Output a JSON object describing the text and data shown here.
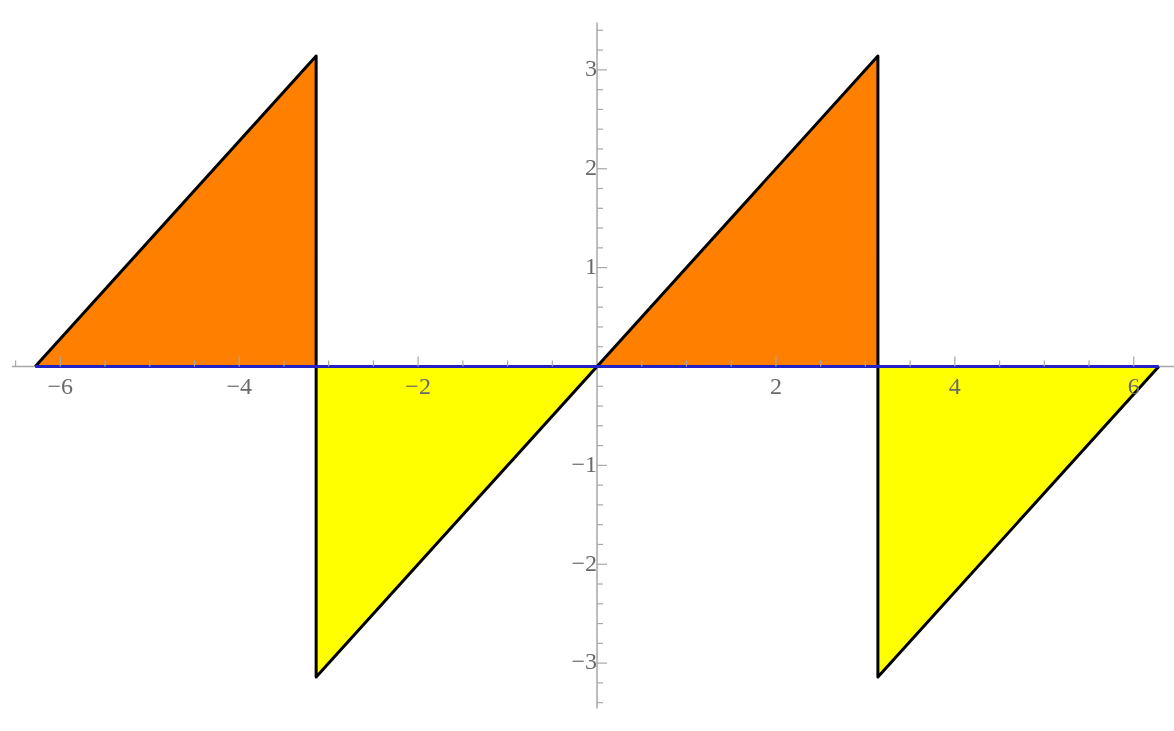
{
  "chart_data": {
    "type": "area",
    "series": [
      {
        "type": "area",
        "color": "#ff7f00",
        "x": [
          -6.28,
          -3.14,
          -3.14,
          0,
          3.14,
          3.14
        ],
        "values": [
          0,
          3.14,
          0,
          0,
          3.14,
          0
        ]
      },
      {
        "type": "area",
        "color": "#ffff00",
        "x": [
          -3.14,
          -3.14,
          0,
          3.14,
          3.14,
          6.28
        ],
        "values": [
          0,
          -3.14,
          0,
          0,
          -3.14,
          0
        ]
      },
      {
        "type": "line",
        "color": "#000000",
        "x": [
          -6.28,
          -3.14,
          -3.14,
          3.14,
          3.14,
          6.28
        ],
        "values": [
          0,
          3.14,
          -3.14,
          3.14,
          -3.14,
          0
        ]
      },
      {
        "type": "line",
        "color": "#2323c4",
        "x": [
          -6.28,
          6.28
        ],
        "values": [
          0,
          0
        ]
      }
    ],
    "xlim": [
      -6.54,
      6.45
    ],
    "ylim": [
      -3.46,
      3.48
    ],
    "xticks": [
      {
        "value": -6.5,
        "label": null
      },
      {
        "value": -6,
        "label": "−6"
      },
      {
        "value": -5.5,
        "label": null
      },
      {
        "value": -5,
        "label": null
      },
      {
        "value": -4.5,
        "label": null
      },
      {
        "value": -4,
        "label": "−4"
      },
      {
        "value": -3.5,
        "label": null
      },
      {
        "value": -3,
        "label": null
      },
      {
        "value": -2.5,
        "label": null
      },
      {
        "value": -2,
        "label": "−2"
      },
      {
        "value": -1.5,
        "label": null
      },
      {
        "value": -1,
        "label": null
      },
      {
        "value": -0.5,
        "label": null
      },
      {
        "value": 0.5,
        "label": null
      },
      {
        "value": 1,
        "label": null
      },
      {
        "value": 1.5,
        "label": null
      },
      2,
      {
        "value": 2.5,
        "label": null
      },
      {
        "value": 3,
        "label": null
      },
      {
        "value": 3.5,
        "label": null
      },
      4,
      {
        "value": 4.5,
        "label": null
      },
      {
        "value": 5,
        "label": null
      },
      {
        "value": 5.5,
        "label": null
      },
      6
    ],
    "yticks": [
      {
        "value": -3.4,
        "label": null
      },
      {
        "value": -3.2,
        "label": null
      },
      {
        "value": -3,
        "label": "−3"
      },
      {
        "value": -2.8,
        "label": null
      },
      {
        "value": -2.6,
        "label": null
      },
      {
        "value": -2.4,
        "label": null
      },
      {
        "value": -2.2,
        "label": null
      },
      {
        "value": -2,
        "label": "−2"
      },
      {
        "value": -1.8,
        "label": null
      },
      {
        "value": -1.6,
        "label": null
      },
      {
        "value": -1.4,
        "label": null
      },
      {
        "value": -1.2,
        "label": null
      },
      {
        "value": -1,
        "label": "−1"
      },
      {
        "value": -0.8,
        "label": null
      },
      {
        "value": -0.6,
        "label": null
      },
      {
        "value": -0.4,
        "label": null
      },
      {
        "value": -0.2,
        "label": null
      },
      {
        "value": 0.2,
        "label": null
      },
      {
        "value": 0.4,
        "label": null
      },
      {
        "value": 0.6,
        "label": null
      },
      {
        "value": 0.8,
        "label": null
      },
      1,
      {
        "value": 1.2,
        "label": null
      },
      {
        "value": 1.4,
        "label": null
      },
      {
        "value": 1.6,
        "label": null
      },
      {
        "value": 1.8,
        "label": null
      },
      2,
      {
        "value": 2.2,
        "label": null
      },
      {
        "value": 2.4,
        "label": null
      },
      {
        "value": 2.6,
        "label": null
      },
      {
        "value": 2.8,
        "label": null
      },
      3,
      {
        "value": 3.2,
        "label": null
      },
      {
        "value": 3.4,
        "label": null
      }
    ],
    "marker": "none",
    "line_style": "solid"
  }
}
